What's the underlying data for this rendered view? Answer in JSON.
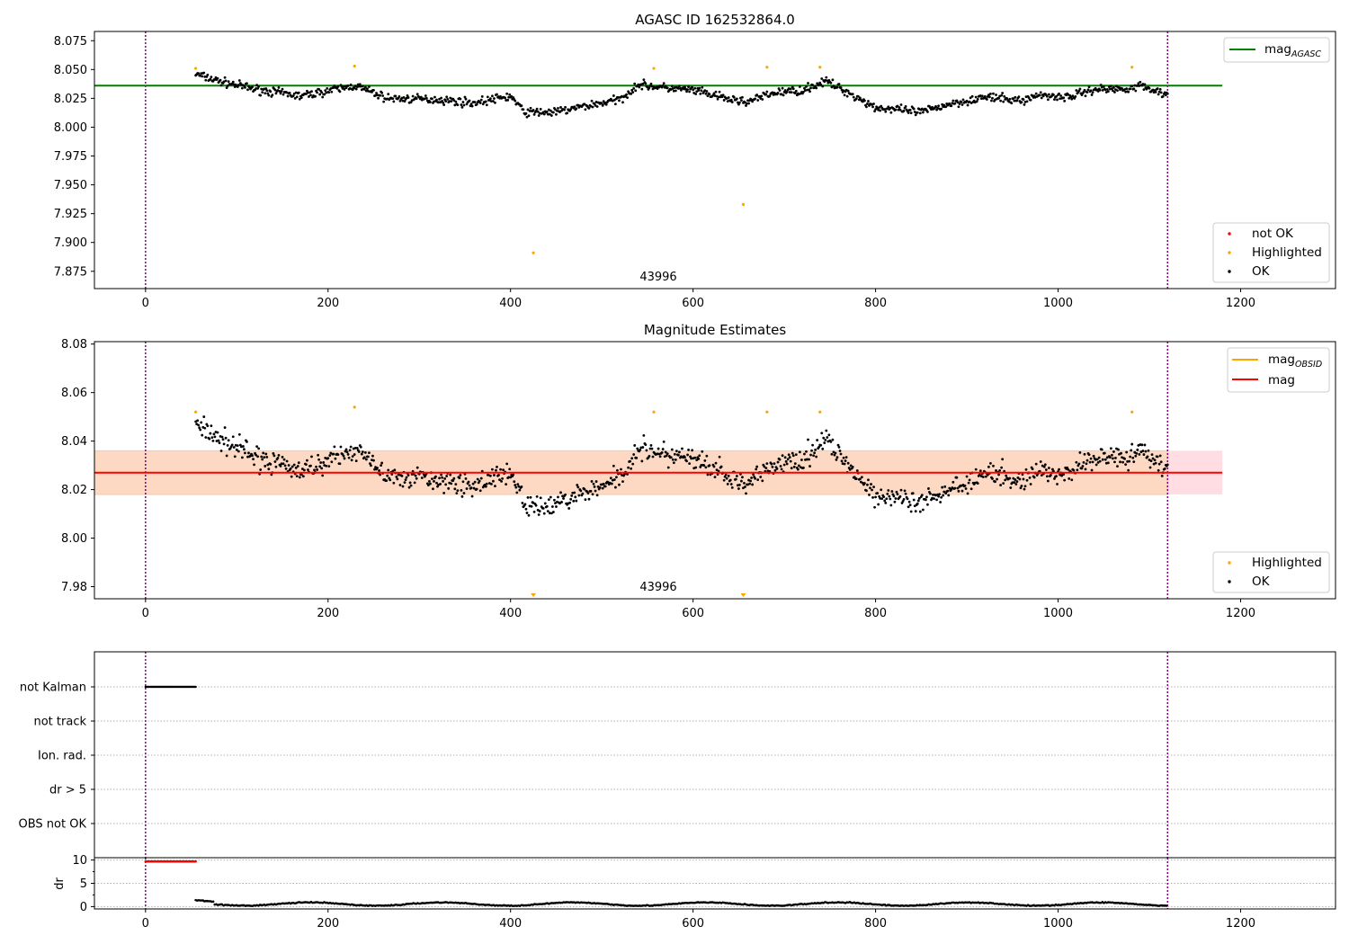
{
  "chart_data": [
    {
      "type": "scatter",
      "title": "AGASC ID 162532864.0",
      "annotation": "43996",
      "xlim": [
        -56,
        1304
      ],
      "ylim": [
        7.86,
        8.083
      ],
      "xticks": [
        0,
        200,
        400,
        600,
        800,
        1000,
        1200
      ],
      "yticks": [
        7.875,
        7.9,
        7.925,
        7.95,
        7.975,
        8.0,
        8.025,
        8.05,
        8.075
      ],
      "ytick_labels": [
        "7.875",
        "7.900",
        "7.925",
        "7.950",
        "7.975",
        "8.000",
        "8.025",
        "8.050",
        "8.075"
      ],
      "vlines": [
        0,
        1120
      ],
      "hline": {
        "label": "mag",
        "label_sub": "AGASC",
        "value": 8.036,
        "x_range": [
          -56,
          1180
        ],
        "color": "#008000"
      },
      "legend_lines_loc": "upper right",
      "legend_points_loc": "lower right",
      "legend_points": [
        {
          "label": "not OK",
          "color": "#ff0000"
        },
        {
          "label": "Highlighted",
          "color": "#ffa500"
        },
        {
          "label": "OK",
          "color": "#000000"
        }
      ],
      "ok_points_note": "about 1060 black points between x = 55 and x = 1120, y ≈ 8.005–8.048",
      "highlighted": [
        [
          55,
          8.051
        ],
        [
          229,
          8.053
        ],
        [
          557,
          8.051
        ],
        [
          681,
          8.052
        ],
        [
          739,
          8.052
        ],
        [
          1081,
          8.052
        ],
        [
          425,
          7.891
        ],
        [
          655,
          7.933
        ]
      ]
    },
    {
      "type": "scatter",
      "title": "Magnitude Estimates",
      "annotation": "43996",
      "xlim": [
        -56,
        1304
      ],
      "ylim": [
        7.975,
        8.081
      ],
      "xticks": [
        0,
        200,
        400,
        600,
        800,
        1000,
        1200
      ],
      "yticks": [
        7.98,
        8.0,
        8.02,
        8.04,
        8.06,
        8.08
      ],
      "ytick_labels": [
        "7.98",
        "8.00",
        "8.02",
        "8.04",
        "8.06",
        "8.08"
      ],
      "vlines": [
        0,
        1120
      ],
      "band_outer": {
        "y": [
          8.018,
          8.036
        ],
        "x_range": [
          -56,
          1180
        ],
        "color": "#ffdde2"
      },
      "band_inner": {
        "y": [
          8.018,
          8.036
        ],
        "x_range": [
          -56,
          1120
        ],
        "color": "#fdd9c3"
      },
      "hline": {
        "label": "mag",
        "value": 8.027,
        "x_range": [
          -56,
          1180
        ],
        "color": "#ff0000"
      },
      "legend_lines_loc": "upper right",
      "legend_lines": [
        {
          "label": "mag",
          "label_sub": "OBSID",
          "color": "#ffa500"
        },
        {
          "label": "mag",
          "color": "#ff0000"
        }
      ],
      "legend_points_loc": "lower right",
      "legend_points": [
        {
          "label": "Highlighted",
          "color": "#ffa500"
        },
        {
          "label": "OK",
          "color": "#000000"
        }
      ],
      "ok_points_note": "about 1060 black points between x = 55 and x = 1120, y ≈ 8.004–8.047",
      "highlighted": [
        [
          55,
          8.052
        ],
        [
          229,
          8.054
        ],
        [
          557,
          8.052
        ],
        [
          681,
          8.052
        ],
        [
          739,
          8.052
        ],
        [
          1081,
          8.052
        ]
      ],
      "offscale_markers": [
        425,
        655
      ]
    },
    {
      "type": "scatter",
      "title": "",
      "xlim": [
        -56,
        1304
      ],
      "categories": [
        "not Kalman",
        "not track",
        "Ion. rad.",
        "dr > 5",
        "OBS not OK"
      ],
      "flag_spans": [
        {
          "category": "not Kalman",
          "x": [
            0,
            55
          ]
        }
      ],
      "vlines": [
        0,
        1120
      ]
    },
    {
      "type": "scatter",
      "title": "",
      "ylabel": "dr",
      "xlim": [
        -56,
        1304
      ],
      "ylim": [
        -0.5,
        10.5
      ],
      "xticks": [
        0,
        200,
        400,
        600,
        800,
        1000,
        1200
      ],
      "yticks": [
        0,
        5,
        10
      ],
      "ytick_labels": [
        "0",
        "5",
        "10"
      ],
      "vlines": [
        0,
        1120
      ],
      "red_points": {
        "x_range": [
          0,
          55
        ],
        "y": 9.7
      },
      "ok_points_note": "black points between x = 55 and x = 1120, dr ≈ 0.2–1.5"
    }
  ],
  "colors": {
    "ok": "#000000",
    "highlighted": "#ffa500",
    "not_ok": "#ff0000",
    "vline": "#800080",
    "grid": "#b0b0b0"
  }
}
